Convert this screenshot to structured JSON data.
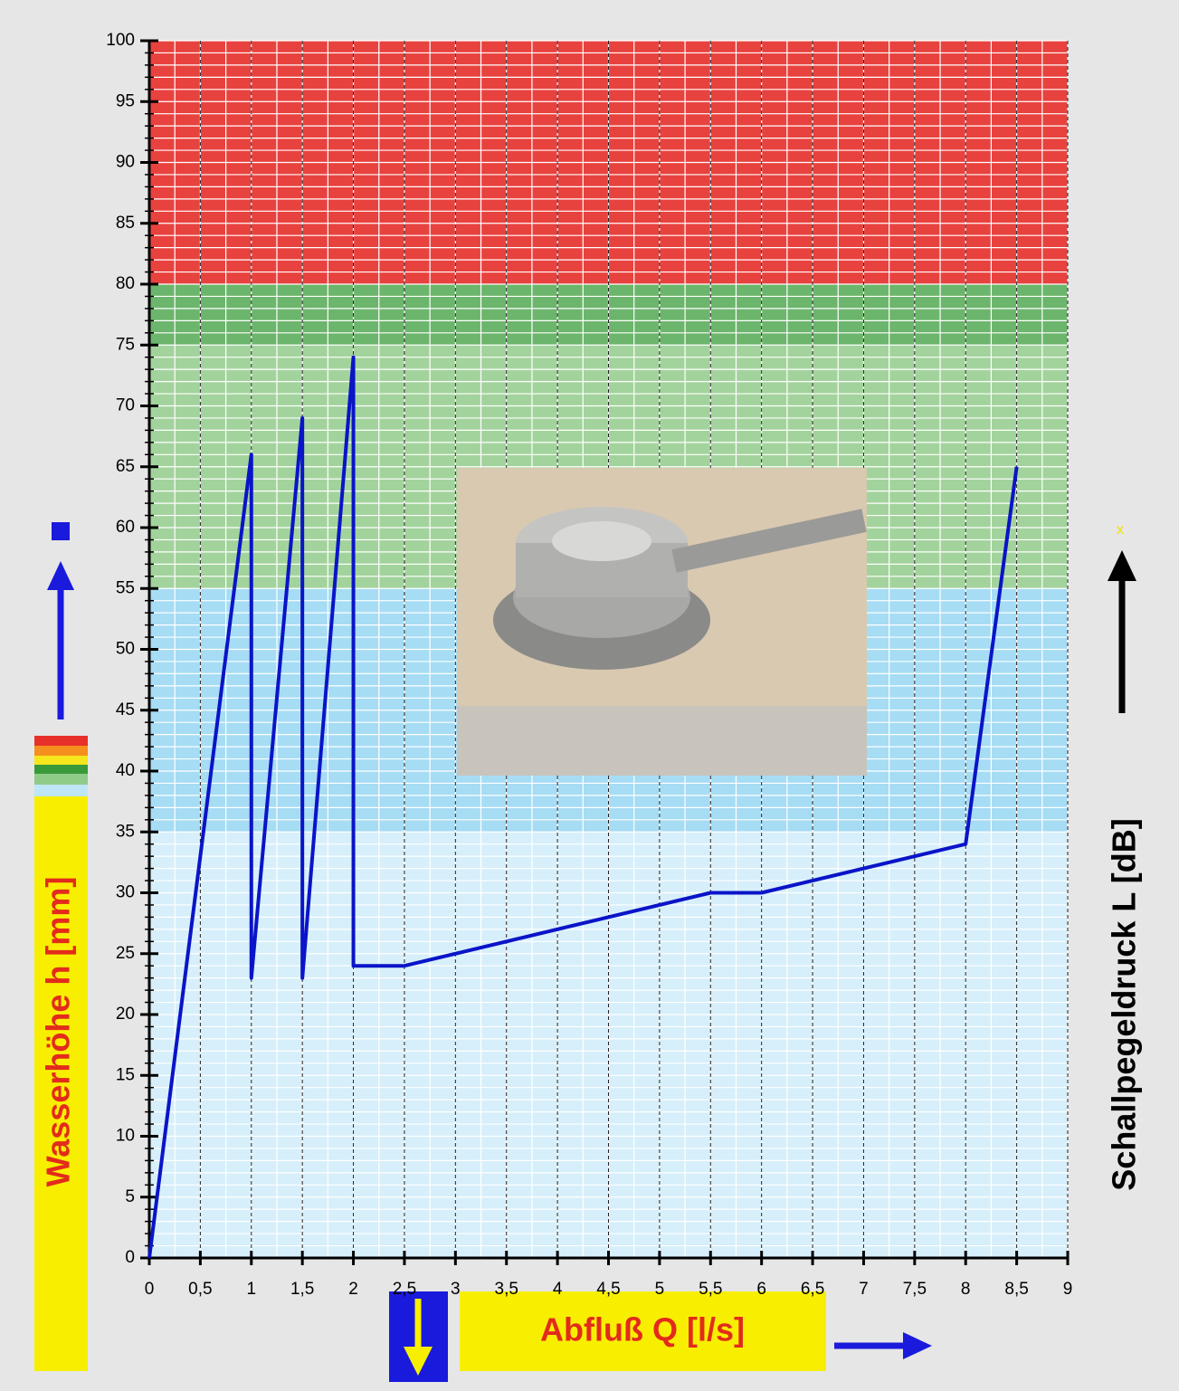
{
  "chart_data": {
    "type": "line",
    "y_label": "Wasserhöhe h [mm]",
    "y2_label": "Schallpegeldruck L [dB]",
    "x_label": "Abfluß Q [l/s]",
    "marker_text": "x",
    "x": [
      0,
      1,
      1,
      1.5,
      1.5,
      2,
      2,
      2.5,
      5.5,
      6,
      8,
      8.5
    ],
    "series": [
      {
        "color": "#0a14c8",
        "values": [
          0,
          66,
          23,
          69,
          23,
          74,
          24,
          24,
          30,
          30,
          34,
          65
        ]
      }
    ],
    "xlim": [
      0,
      9
    ],
    "xticks": [
      0,
      {
        "value": 0.5,
        "label": "0,5"
      },
      1,
      {
        "value": 1.5,
        "label": "1,5"
      },
      2,
      {
        "value": 2.5,
        "label": "2,5"
      },
      3,
      {
        "value": 3.5,
        "label": "3,5"
      },
      4,
      {
        "value": 4.5,
        "label": "4,5"
      },
      5,
      {
        "value": 5.5,
        "label": "5,5"
      },
      6,
      {
        "value": 6.5,
        "label": "6,5"
      },
      7,
      {
        "value": 7.5,
        "label": "7,5"
      },
      8,
      {
        "value": 8.5,
        "label": "8,5"
      },
      9
    ],
    "ylim": [
      0,
      100
    ],
    "yticks": [
      0,
      5,
      10,
      15,
      20,
      25,
      30,
      35,
      40,
      45,
      50,
      55,
      60,
      65,
      70,
      75,
      80,
      85,
      90,
      95,
      100
    ],
    "minor_xstep": 0.25,
    "minor_ystep": 1,
    "bands": [
      {
        "from": 0,
        "to": 35,
        "color": "#d6effa"
      },
      {
        "from": 35,
        "to": 55,
        "color": "#a6dcf4"
      },
      {
        "from": 55,
        "to": 75,
        "color": "#a3d39c"
      },
      {
        "from": 75,
        "to": 80,
        "color": "#6cb56c"
      },
      {
        "from": 80,
        "to": 100,
        "color": "#e8423f"
      }
    ]
  }
}
